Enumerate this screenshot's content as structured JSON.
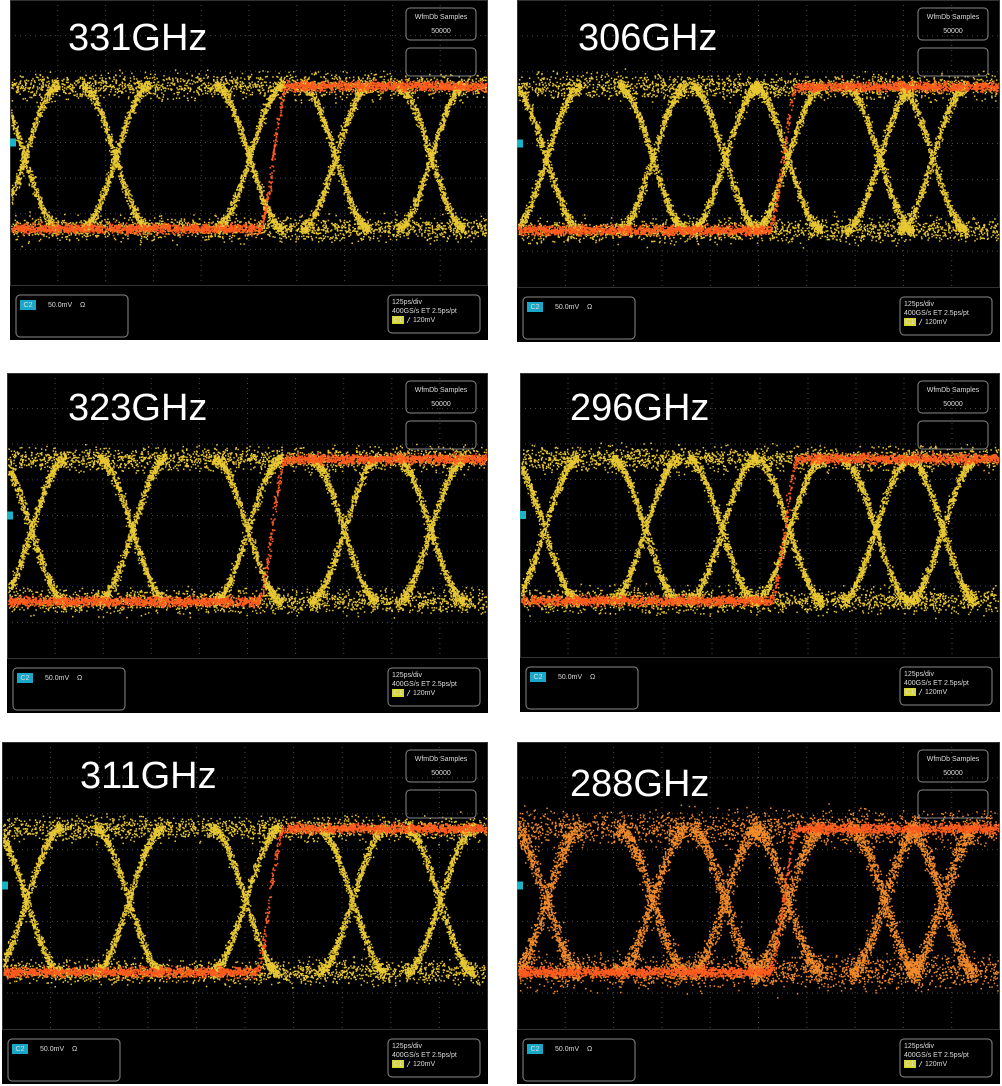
{
  "panels": [
    {
      "label": "331GHz",
      "samples_title": "WfmDb Samples",
      "samples_value": "50000",
      "channel": "C2",
      "scale": "50.0mV",
      "ohm": "Ω",
      "timebase": "125ps/div",
      "sample_rate": "400GS/s ET 2.5ps/pt",
      "trigger_channel": "C1",
      "trigger_level": "120mV"
    },
    {
      "label": "306GHz",
      "samples_title": "WfmDb Samples",
      "samples_value": "50000",
      "channel": "C2",
      "scale": "50.0mV",
      "ohm": "Ω",
      "timebase": "125ps/div",
      "sample_rate": "400GS/s ET 2.5ps/pt",
      "trigger_channel": "C1",
      "trigger_level": "120mV"
    },
    {
      "label": "323GHz",
      "samples_title": "WfmDb Samples",
      "samples_value": "50000",
      "channel": "C2",
      "scale": "50.0mV",
      "ohm": "Ω",
      "timebase": "125ps/div",
      "sample_rate": "400GS/s ET 2.5ps/pt",
      "trigger_channel": "C1",
      "trigger_level": "120mV"
    },
    {
      "label": "296GHz",
      "samples_title": "WfmDb Samples",
      "samples_value": "50000",
      "channel": "C2",
      "scale": "50.0mV",
      "ohm": "Ω",
      "timebase": "125ps/div",
      "sample_rate": "400GS/s ET 2.5ps/pt",
      "trigger_channel": "C1",
      "trigger_level": "120mV"
    },
    {
      "label": "311GHz",
      "samples_title": "WfmDb Samples",
      "samples_value": "50000",
      "channel": "C2",
      "scale": "50.0mV",
      "ohm": "Ω",
      "timebase": "125ps/div",
      "sample_rate": "400GS/s ET 2.5ps/pt",
      "trigger_channel": "C1",
      "trigger_level": "120mV"
    },
    {
      "label": "288GHz",
      "samples_title": "WfmDb Samples",
      "samples_value": "50000",
      "channel": "C2",
      "scale": "50.0mV",
      "ohm": "Ω",
      "timebase": "125ps/div",
      "sample_rate": "400GS/s ET 2.5ps/pt",
      "trigger_channel": "C1",
      "trigger_level": "120mV"
    }
  ]
}
